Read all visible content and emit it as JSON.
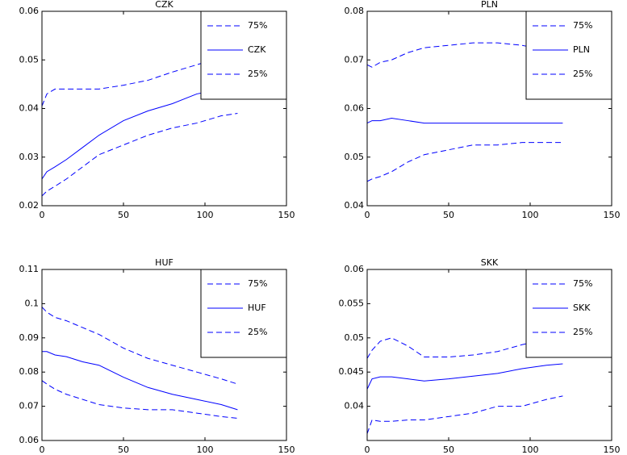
{
  "chart_data": [
    {
      "type": "line",
      "title": "CZK",
      "legend": "upper right",
      "x": [
        0,
        3,
        8,
        15,
        25,
        35,
        50,
        65,
        80,
        95,
        110,
        120
      ],
      "xlim": [
        0,
        150
      ],
      "xticks": [
        0,
        50,
        100,
        150
      ],
      "ylim": [
        0.02,
        0.06
      ],
      "yticks": [
        0.02,
        0.03,
        0.04,
        0.05,
        0.06
      ],
      "series": [
        {
          "name": "75%",
          "color": "#0000ff",
          "dashed": true,
          "values": [
            0.0405,
            0.043,
            0.044,
            0.044,
            0.044,
            0.044,
            0.0448,
            0.0458,
            0.0475,
            0.049,
            0.0505,
            0.051
          ]
        },
        {
          "name": "CZK",
          "color": "#0000ff",
          "dashed": false,
          "values": [
            0.0255,
            0.027,
            0.028,
            0.0295,
            0.032,
            0.0345,
            0.0375,
            0.0395,
            0.041,
            0.043,
            0.044,
            0.045
          ]
        },
        {
          "name": "25%",
          "color": "#0000ff",
          "dashed": true,
          "values": [
            0.022,
            0.023,
            0.024,
            0.0255,
            0.028,
            0.0305,
            0.0325,
            0.0345,
            0.036,
            0.037,
            0.0385,
            0.039
          ]
        }
      ]
    },
    {
      "type": "line",
      "title": "PLN",
      "legend": "upper right",
      "x": [
        0,
        3,
        8,
        15,
        25,
        35,
        50,
        65,
        80,
        95,
        110,
        120
      ],
      "xlim": [
        0,
        150
      ],
      "xticks": [
        0,
        50,
        100,
        150
      ],
      "ylim": [
        0.04,
        0.08
      ],
      "yticks": [
        0.04,
        0.05,
        0.06,
        0.07,
        0.08
      ],
      "series": [
        {
          "name": "75%",
          "color": "#0000ff",
          "dashed": true,
          "values": [
            0.069,
            0.0685,
            0.0695,
            0.07,
            0.0715,
            0.0725,
            0.073,
            0.0735,
            0.0735,
            0.073,
            0.072,
            0.072
          ]
        },
        {
          "name": "PLN",
          "color": "#0000ff",
          "dashed": false,
          "values": [
            0.057,
            0.0575,
            0.0575,
            0.058,
            0.0575,
            0.057,
            0.057,
            0.057,
            0.057,
            0.057,
            0.057,
            0.057
          ]
        },
        {
          "name": "25%",
          "color": "#0000ff",
          "dashed": true,
          "values": [
            0.045,
            0.0455,
            0.046,
            0.047,
            0.049,
            0.0505,
            0.0515,
            0.0525,
            0.0525,
            0.053,
            0.053,
            0.053
          ]
        }
      ]
    },
    {
      "type": "line",
      "title": "HUF",
      "legend": "upper right",
      "x": [
        0,
        3,
        8,
        15,
        25,
        35,
        50,
        65,
        80,
        95,
        110,
        120
      ],
      "xlim": [
        0,
        150
      ],
      "xticks": [
        0,
        50,
        100,
        150
      ],
      "ylim": [
        0.06,
        0.11
      ],
      "yticks": [
        0.06,
        0.07,
        0.08,
        0.09,
        0.1,
        0.11
      ],
      "series": [
        {
          "name": "75%",
          "color": "#0000ff",
          "dashed": true,
          "values": [
            0.099,
            0.0975,
            0.096,
            0.095,
            0.093,
            0.091,
            0.087,
            0.084,
            0.082,
            0.08,
            0.078,
            0.0765
          ]
        },
        {
          "name": "HUF",
          "color": "#0000ff",
          "dashed": false,
          "values": [
            0.086,
            0.086,
            0.085,
            0.0845,
            0.083,
            0.082,
            0.0785,
            0.0755,
            0.0735,
            0.072,
            0.0705,
            0.069
          ]
        },
        {
          "name": "25%",
          "color": "#0000ff",
          "dashed": true,
          "values": [
            0.0775,
            0.0765,
            0.075,
            0.0735,
            0.072,
            0.0705,
            0.0695,
            0.069,
            0.069,
            0.068,
            0.067,
            0.0665
          ]
        }
      ]
    },
    {
      "type": "line",
      "title": "SKK",
      "legend": "upper right",
      "x": [
        0,
        3,
        8,
        15,
        25,
        35,
        50,
        65,
        80,
        95,
        110,
        120
      ],
      "xlim": [
        0,
        150
      ],
      "xticks": [
        0,
        50,
        100,
        150
      ],
      "ylim": [
        0.035,
        0.06
      ],
      "yticks": [
        0.04,
        0.045,
        0.05,
        0.055,
        0.06
      ],
      "series": [
        {
          "name": "75%",
          "color": "#0000ff",
          "dashed": true,
          "values": [
            0.047,
            0.0482,
            0.0495,
            0.05,
            0.0488,
            0.0472,
            0.0472,
            0.0475,
            0.048,
            0.049,
            0.0498,
            0.0505
          ]
        },
        {
          "name": "SKK",
          "color": "#0000ff",
          "dashed": false,
          "values": [
            0.0425,
            0.044,
            0.0443,
            0.0443,
            0.044,
            0.0437,
            0.044,
            0.0444,
            0.0448,
            0.0455,
            0.046,
            0.0462
          ]
        },
        {
          "name": "25%",
          "color": "#0000ff",
          "dashed": true,
          "values": [
            0.036,
            0.038,
            0.0378,
            0.0378,
            0.038,
            0.038,
            0.0385,
            0.039,
            0.04,
            0.04,
            0.041,
            0.0415
          ]
        }
      ]
    }
  ]
}
